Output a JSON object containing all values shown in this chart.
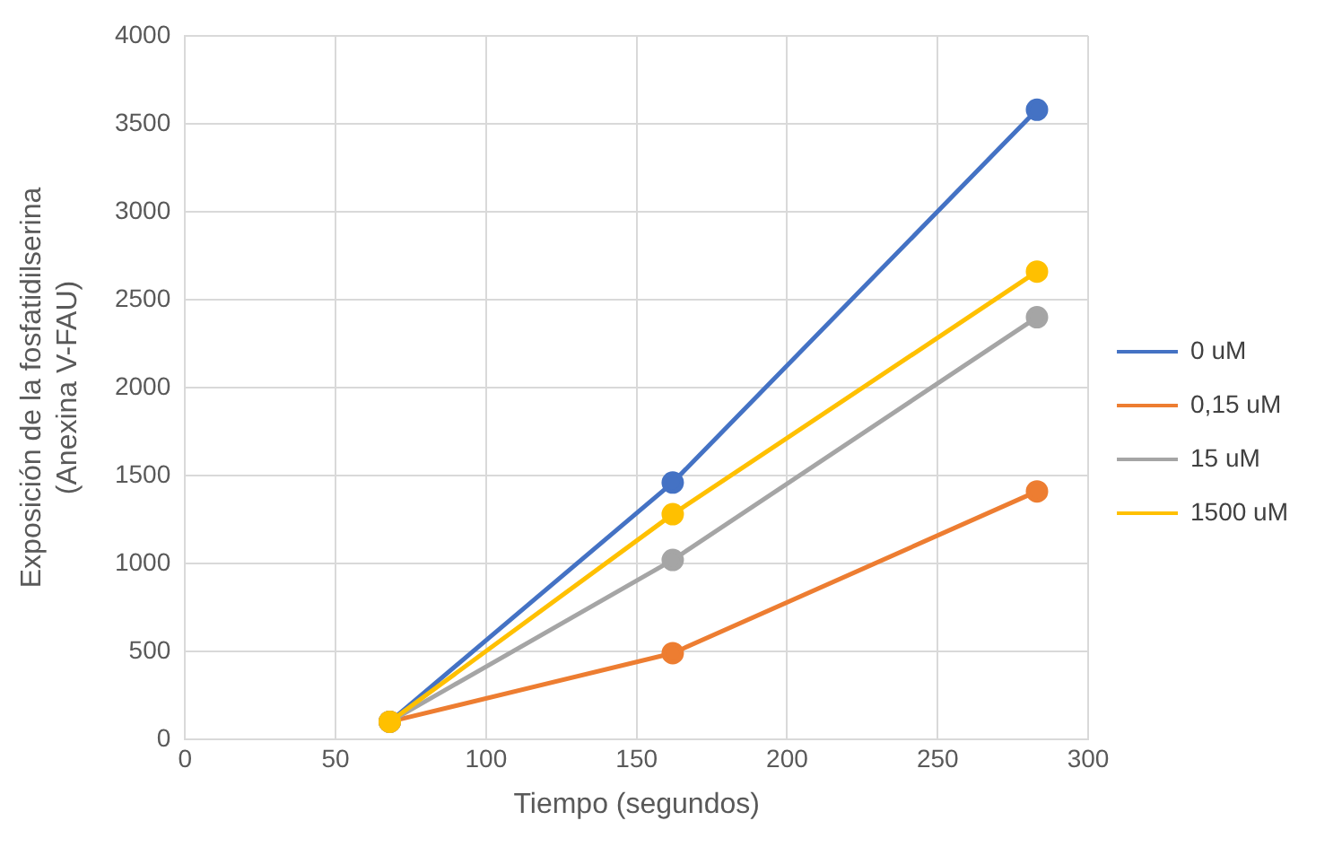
{
  "chart_data": {
    "type": "line",
    "xlabel": "Tiempo (segundos)",
    "ylabel": "Exposición de la fosfatidilserina (Anexina V-FAU)",
    "x": [
      68,
      162,
      283
    ],
    "series": [
      {
        "name": "0 uM",
        "color": "#4472c4",
        "values": [
          100,
          1460,
          3580
        ]
      },
      {
        "name": "0,15 uM",
        "color": "#ed7d31",
        "values": [
          100,
          490,
          1410
        ]
      },
      {
        "name": "15 uM",
        "color": "#a5a5a5",
        "values": [
          100,
          1020,
          2400
        ]
      },
      {
        "name": "1500 uM",
        "color": "#ffc000",
        "values": [
          100,
          1280,
          2660
        ]
      }
    ],
    "xlim": [
      0,
      300
    ],
    "xticks": [
      0,
      50,
      100,
      150,
      200,
      250,
      300
    ],
    "ylim": [
      0,
      4000
    ],
    "yticks": [
      0,
      500,
      1000,
      1500,
      2000,
      2500,
      3000,
      3500,
      4000
    ],
    "grid": true,
    "legend": "right",
    "marker": "circle",
    "line_style": "solid"
  }
}
